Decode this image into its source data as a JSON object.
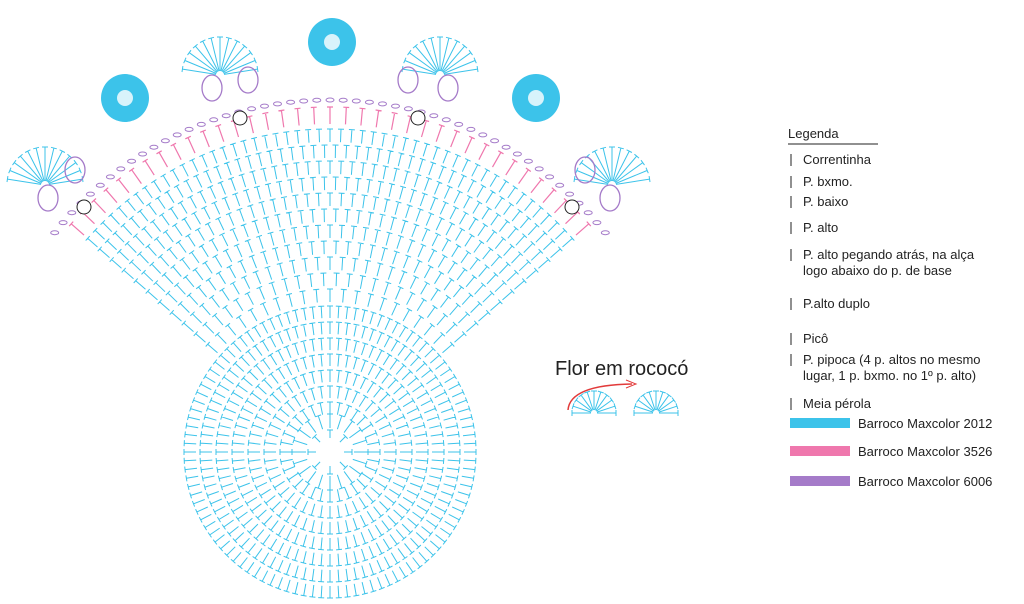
{
  "caption": "Flor em rococó",
  "legend": {
    "title": "Legenda",
    "items": [
      {
        "lines": [
          "Correntinha"
        ]
      },
      {
        "lines": [
          "P. bxmo."
        ]
      },
      {
        "lines": [
          "P. baixo"
        ]
      },
      {
        "lines": [
          "P. alto"
        ]
      },
      {
        "lines": [
          "P. alto pegando atrás, na alça",
          "logo abaixo do p. de base"
        ]
      },
      {
        "lines": [
          "P.alto duplo"
        ]
      },
      {
        "lines": [
          "Picô"
        ]
      },
      {
        "lines": [
          "P. pipoca (4 p. altos no mesmo",
          "lugar, 1 p. bxmo. no 1º p. alto)"
        ]
      },
      {
        "lines": [
          "Meia pérola"
        ]
      }
    ],
    "colors": [
      {
        "label": "Barroco Maxcolor 2012",
        "color": "#3cc3ea"
      },
      {
        "label": "Barroco Maxcolor 3526",
        "color": "#ef77ad"
      },
      {
        "label": "Barroco Maxcolor 6006",
        "color": "#a57bc9"
      }
    ]
  }
}
